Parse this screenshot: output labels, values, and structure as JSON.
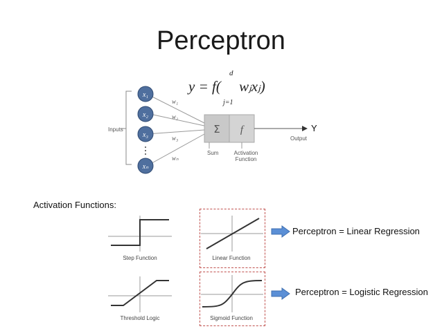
{
  "title": "Perceptron",
  "formula": {
    "main": "y = f(     wⱼxⱼ)",
    "sum_upper": "d",
    "sum_lower": "j=1"
  },
  "diagram": {
    "inputs_label": "Inputs",
    "input_nodes": [
      "x₁",
      "x₂",
      "x₃",
      "xₙ"
    ],
    "weights": [
      "w₁",
      "w₂",
      "w₃",
      "wₙ"
    ],
    "sum_symbol": "Σ",
    "activation_symbol": "f",
    "sum_label": "Sum",
    "activation_label_line1": "Activation",
    "activation_label_line2": "Function",
    "output_label": "Output",
    "output_symbol": "Y"
  },
  "activation_functions": {
    "heading": "Activation Functions:",
    "step": "Step Function",
    "linear": "Linear Function",
    "threshold": "Threshold Logic",
    "sigmoid": "Sigmoid Function"
  },
  "results": {
    "linear": "Perceptron = Linear Regression",
    "logistic": "Perceptron = Logistic Regression"
  },
  "colors": {
    "node_fill": "#4f6f9e",
    "box_fill": "#c9c9c9",
    "highlight_border": "#c0504d",
    "arrow_fill": "#5b8fd6"
  }
}
